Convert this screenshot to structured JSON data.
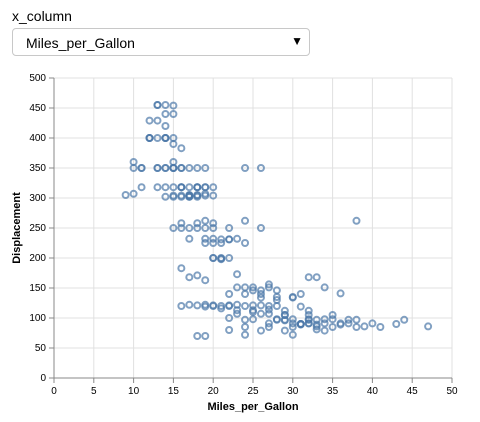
{
  "control": {
    "label": "x_column",
    "selected": "Miles_per_Gallon",
    "options": [
      "Miles_per_Gallon"
    ]
  },
  "icons": {
    "dropdown": "triangle-down-icon"
  },
  "colors": {
    "point_stroke": "#4c78a8",
    "grid": "#e0e0e0",
    "axis": "#888888"
  },
  "chart_data": {
    "type": "scatter",
    "title": "",
    "xlabel": "Miles_per_Gallon",
    "ylabel": "Displacement",
    "xlim": [
      0,
      50
    ],
    "ylim": [
      0,
      500
    ],
    "xticks": [
      0,
      5,
      10,
      15,
      20,
      25,
      30,
      35,
      40,
      45,
      50
    ],
    "yticks": [
      0,
      50,
      100,
      150,
      200,
      250,
      300,
      350,
      400,
      450,
      500
    ],
    "grid": true,
    "marker": "open-circle",
    "x": [
      9,
      10,
      10,
      11,
      11,
      12,
      12,
      13,
      13,
      13,
      14,
      14,
      14,
      15,
      15,
      15,
      15,
      16,
      16,
      16,
      16,
      17,
      17,
      17,
      17,
      18,
      18,
      18,
      19,
      19,
      10,
      11,
      12,
      13,
      14,
      14,
      14,
      15,
      15,
      15,
      16,
      16,
      17,
      18,
      18,
      19,
      19,
      19,
      20,
      20,
      12,
      13,
      14,
      14,
      15,
      15,
      16,
      16,
      17,
      17,
      18,
      18,
      13,
      13,
      14,
      14,
      15,
      15,
      15,
      16,
      16,
      17,
      17,
      18,
      18,
      19,
      19,
      19,
      20,
      20,
      20,
      21,
      21,
      22,
      22,
      23,
      24,
      16,
      17,
      18,
      19,
      20,
      21,
      22,
      19,
      20,
      20,
      21,
      21,
      22,
      22,
      23,
      23,
      24,
      25,
      26,
      27,
      16,
      17,
      18,
      19,
      20,
      21,
      22,
      23,
      24,
      24,
      25,
      25,
      26,
      26,
      27,
      27,
      28,
      28,
      29,
      30,
      31,
      32,
      33,
      19,
      20,
      21,
      22,
      23,
      24,
      25,
      26,
      27,
      28,
      29,
      29,
      30,
      30,
      31,
      31,
      32,
      33,
      34,
      22,
      23,
      24,
      25,
      26,
      27,
      28,
      29,
      30,
      31,
      32,
      32,
      33,
      34,
      35,
      35,
      36,
      37,
      38,
      24,
      25,
      26,
      27,
      28,
      29,
      30,
      31,
      32,
      33,
      34,
      35,
      36,
      37,
      38,
      39,
      40,
      41,
      43,
      44,
      47,
      18,
      19,
      22,
      24,
      27,
      29,
      30,
      31,
      32,
      33,
      24,
      26,
      38,
      26,
      28,
      32,
      34,
      36
    ],
    "y": [
      305,
      350,
      307,
      318,
      350,
      429,
      400,
      350,
      400,
      455,
      318,
      350,
      400,
      302,
      318,
      350,
      360,
      304,
      318,
      350,
      383,
      302,
      304,
      318,
      350,
      318,
      302,
      304,
      318,
      307,
      360,
      350,
      400,
      318,
      302,
      350,
      400,
      304,
      350,
      390,
      318,
      350,
      305,
      305,
      318,
      304,
      318,
      350,
      304,
      318,
      400,
      429,
      455,
      400,
      350,
      400,
      302,
      318,
      302,
      304,
      318,
      350,
      455,
      350,
      440,
      420,
      454,
      440,
      250,
      250,
      258,
      232,
      250,
      250,
      258,
      250,
      225,
      262,
      232,
      250,
      258,
      231,
      225,
      231,
      250,
      232,
      262,
      183,
      168,
      171,
      163,
      200,
      199,
      200,
      232,
      225,
      200,
      200,
      198,
      231,
      140,
      151,
      173,
      225,
      151,
      146,
      156,
      120,
      122,
      121,
      122,
      121,
      120,
      121,
      122,
      140,
      151,
      146,
      121,
      134,
      140,
      107,
      151,
      146,
      135,
      112,
      135,
      140,
      105,
      168,
      119,
      120,
      116,
      120,
      107,
      97,
      110,
      121,
      120,
      120,
      96,
      105,
      134,
      91,
      90,
      119,
      97,
      97,
      98,
      100,
      113,
      120,
      113,
      107,
      114,
      97,
      105,
      98,
      90,
      91,
      112,
      89,
      91,
      98,
      105,
      89,
      91,
      97,
      85,
      98,
      79,
      91,
      98,
      97,
      85,
      89,
      91,
      86,
      79,
      85,
      91,
      97,
      85,
      86,
      91,
      85,
      90,
      97,
      86,
      70,
      70,
      80,
      72,
      85,
      79,
      72,
      90,
      98,
      81,
      350,
      350,
      262,
      250,
      130,
      168,
      151,
      141
    ]
  }
}
